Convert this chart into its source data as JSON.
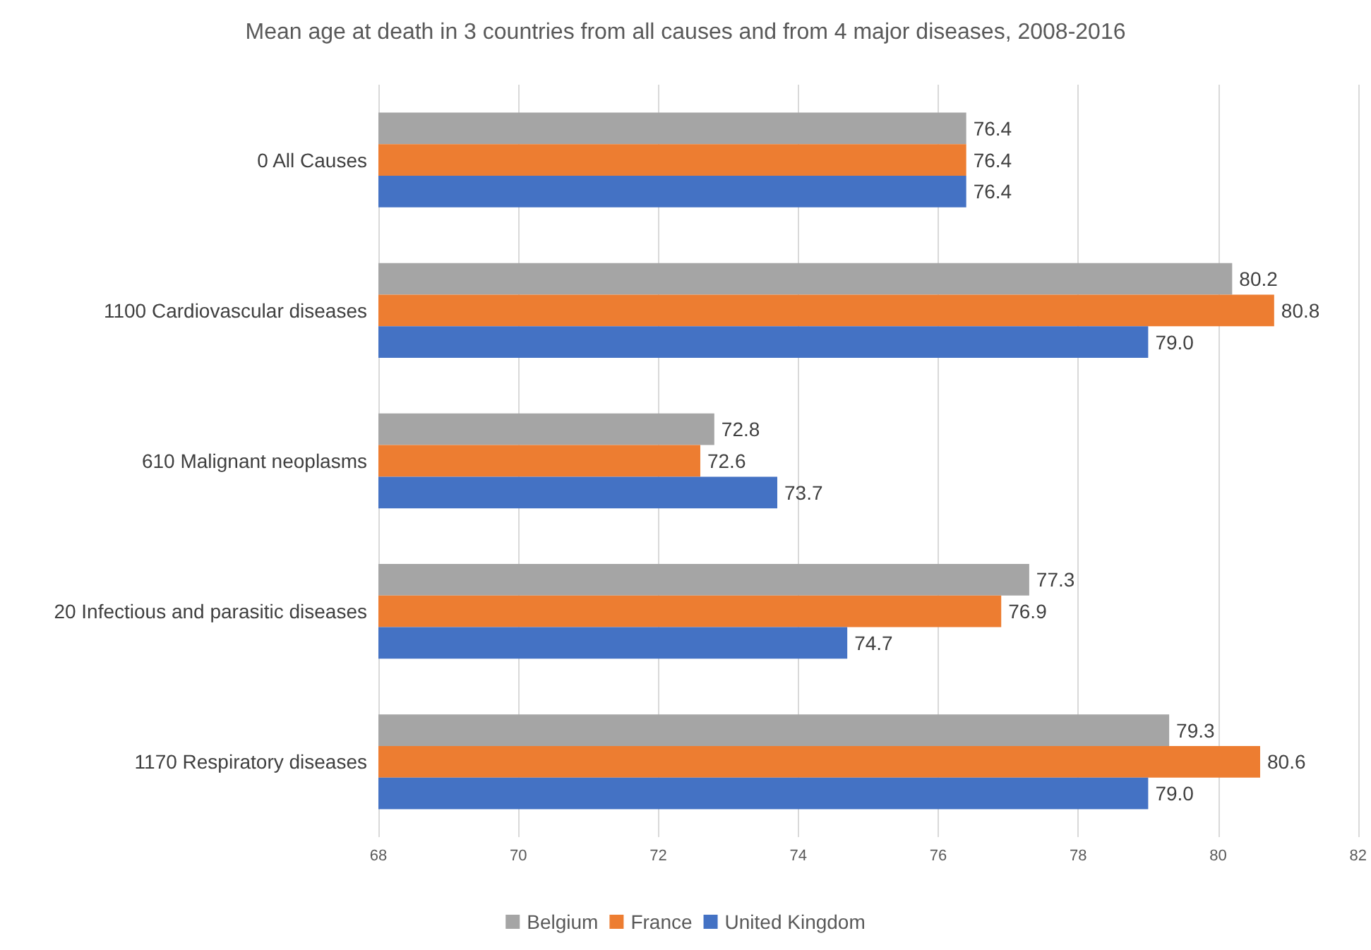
{
  "chart_data": {
    "type": "bar",
    "orientation": "horizontal",
    "title": "Mean age at death in 3 countries from all causes and from 4 major diseases, 2008-2016",
    "categories": [
      "0 All Causes",
      "1100 Cardiovascular diseases",
      "610 Malignant neoplasms",
      "20 Infectious and parasitic diseases",
      "1170 Respiratory diseases"
    ],
    "series": [
      {
        "name": "Belgium",
        "color": "#a5a5a5",
        "values": [
          76.4,
          80.2,
          72.8,
          77.3,
          79.3
        ],
        "value_labels": [
          "76.4",
          "80.2",
          "72.8",
          "77.3",
          "79.3"
        ]
      },
      {
        "name": "France",
        "color": "#ed7d31",
        "values": [
          76.4,
          80.8,
          72.6,
          76.9,
          80.6
        ],
        "value_labels": [
          "76.4",
          "80.8",
          "72.6",
          "76.9",
          "80.6"
        ]
      },
      {
        "name": "United Kingdom",
        "color": "#4472c4",
        "values": [
          76.4,
          79.0,
          73.7,
          74.7,
          79.0
        ],
        "value_labels": [
          "76.4",
          "79.0",
          "73.7",
          "74.7",
          "79.0"
        ]
      }
    ],
    "xlim": [
      68,
      82
    ],
    "xticks": [
      68,
      70,
      72,
      74,
      76,
      78,
      80,
      82
    ],
    "grid": "x",
    "legend": "bottom"
  }
}
